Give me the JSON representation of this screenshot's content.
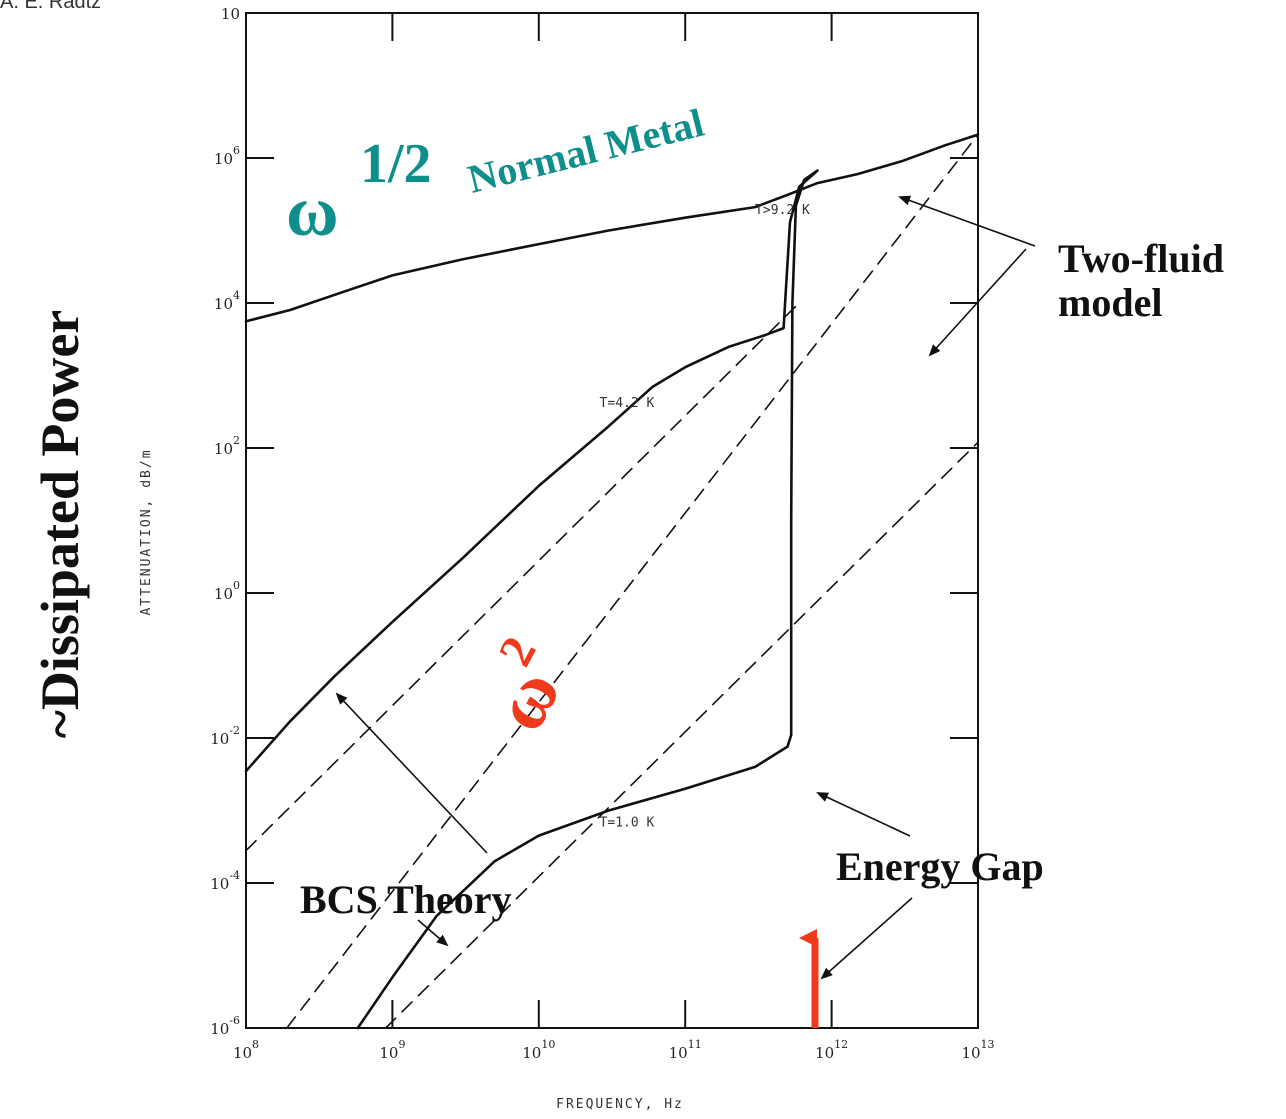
{
  "header_fragment": "A. E. Radtz",
  "chart_data": {
    "type": "line",
    "xlabel": "FREQUENCY, Hz",
    "ylabel": "ATTENUATION, dB/m",
    "x_scale": "log",
    "y_scale": "log",
    "xlim": [
      100000000.0,
      10000000000000.0
    ],
    "ylim": [
      1e-06,
      100000000.0
    ],
    "x_ticks": [
      {
        "base": "10",
        "exp": "8",
        "value": 100000000.0
      },
      {
        "base": "10",
        "exp": "9",
        "value": 1000000000.0
      },
      {
        "base": "10",
        "exp": "10",
        "value": 10000000000.0
      },
      {
        "base": "10",
        "exp": "11",
        "value": 100000000000.0
      },
      {
        "base": "10",
        "exp": "12",
        "value": 1000000000000.0
      },
      {
        "base": "10",
        "exp": "13",
        "value": 10000000000000.0
      }
    ],
    "y_ticks": [
      {
        "base": "10",
        "exp": "-6",
        "value": 1e-06
      },
      {
        "base": "10",
        "exp": "-4",
        "value": 0.0001
      },
      {
        "base": "10",
        "exp": "-2",
        "value": 0.01
      },
      {
        "base": "10",
        "exp": "0",
        "value": 1
      },
      {
        "base": "10",
        "exp": "2",
        "value": 100.0
      },
      {
        "base": "10",
        "exp": "4",
        "value": 10000.0
      },
      {
        "base": "10",
        "exp": "6",
        "value": 1000000.0
      },
      {
        "base": "10",
        "exp": "",
        "value": 100000000.0
      }
    ],
    "series": [
      {
        "name": "T>9.2 K",
        "style": "solid",
        "points": [
          [
            100000000.0,
            5600.0
          ],
          [
            200000000.0,
            8000.0
          ],
          [
            500000000.0,
            15000.0
          ],
          [
            1000000000.0,
            24000.0
          ],
          [
            3000000000.0,
            40000.0
          ],
          [
            10000000000.0,
            65000.0
          ],
          [
            30000000000.0,
            100000.0
          ],
          [
            100000000000.0,
            150000.0
          ],
          [
            300000000000.0,
            210000.0
          ],
          [
            500000000000.0,
            310000.0
          ],
          [
            800000000000.0,
            450000.0
          ],
          [
            1500000000000.0,
            600000.0
          ],
          [
            3000000000000.0,
            900000.0
          ],
          [
            6000000000000.0,
            1500000.0
          ],
          [
            10000000000000.0,
            2100000.0
          ]
        ]
      },
      {
        "name": "T=4.2 K",
        "style": "solid",
        "points": [
          [
            100000000.0,
            0.0035
          ],
          [
            200000000.0,
            0.017
          ],
          [
            400000000.0,
            0.07
          ],
          [
            1000000000.0,
            0.4
          ],
          [
            3000000000.0,
            3
          ],
          [
            10000000000.0,
            30.0
          ],
          [
            30000000000.0,
            200.0
          ],
          [
            60000000000.0,
            700.0
          ],
          [
            100000000000.0,
            1300.0
          ],
          [
            200000000000.0,
            2500.0
          ],
          [
            350000000000.0,
            3600.0
          ],
          [
            470000000000.0,
            4500.0
          ],
          [
            490000000000.0,
            18000.0
          ],
          [
            520000000000.0,
            130000.0
          ],
          [
            600000000000.0,
            400000.0
          ],
          [
            800000000000.0,
            670000.0
          ]
        ]
      },
      {
        "name": "T=1.0 K",
        "style": "solid",
        "points": [
          [
            580000000.0,
            1e-06
          ],
          [
            1000000000.0,
            5e-06
          ],
          [
            2000000000.0,
            3.5e-05
          ],
          [
            5000000000.0,
            0.0002
          ],
          [
            10000000000.0,
            0.00045
          ],
          [
            30000000000.0,
            0.001
          ],
          [
            100000000000.0,
            0.002
          ],
          [
            300000000000.0,
            0.004
          ],
          [
            500000000000.0,
            0.0076
          ],
          [
            530000000000.0,
            0.011
          ],
          [
            530000000000.0,
            10.0
          ],
          [
            540000000000.0,
            10000.0
          ],
          [
            570000000000.0,
            220000.0
          ],
          [
            650000000000.0,
            500000.0
          ],
          [
            800000000000.0,
            670000.0
          ]
        ]
      },
      {
        "name": "Two-fluid model (upper)",
        "style": "dashed",
        "points": [
          [
            190000000.0,
            1e-06
          ],
          [
            10000000000000.0,
            2100000.0
          ]
        ]
      },
      {
        "name": "Two-fluid model (middle)",
        "style": "dashed",
        "points": [
          [
            100000000.0,
            0.00028
          ],
          [
            600000000000.0,
            10000.0
          ]
        ]
      },
      {
        "name": "Two-fluid model (lower)",
        "style": "dashed",
        "points": [
          [
            900000000.0,
            1e-06
          ],
          [
            10000000000000.0,
            120.0
          ]
        ]
      }
    ],
    "curve_labels": [
      {
        "text": "T>9.2 K",
        "x": 300000000000.0,
        "y": 170000.0
      },
      {
        "text": "T=4.2 K",
        "x": 26000000000.0,
        "y": 370.0
      },
      {
        "text": "T=1.0 K",
        "x": 26000000000.0,
        "y": 0.0006
      }
    ]
  },
  "annotations": {
    "y_label": "~Dissipated Power",
    "omega_half_base": "ω",
    "omega_half_exp": "1/2",
    "normal_metal": "Normal Metal",
    "omega_sq_base": "ω",
    "omega_sq_exp": "2",
    "two_fluid_line1": "Two-fluid",
    "two_fluid_line2": "model",
    "bcs": "BCS Theory",
    "energy_gap": "Energy Gap"
  },
  "colors": {
    "teal": "#0f8f8c",
    "red": "#ef3a1c",
    "ink": "#111111"
  }
}
